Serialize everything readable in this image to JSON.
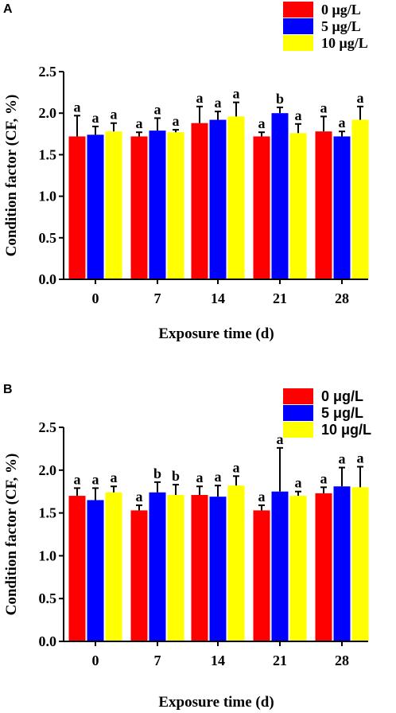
{
  "chart_data": [
    {
      "panel_label": "A",
      "type": "bar",
      "categories": [
        "0",
        "7",
        "14",
        "21",
        "28"
      ],
      "xlabel": "Exposure time (d)",
      "ylabel": "Condition factor (CF, %)",
      "ylim": [
        0,
        2.5
      ],
      "yticks": [
        "0.0",
        "0.5",
        "1.0",
        "1.5",
        "2.0",
        "2.5"
      ],
      "legend_position": "top-right",
      "series": [
        {
          "name": "0 μg/L",
          "color": "#ff0000",
          "values": [
            1.72,
            1.72,
            1.88,
            1.72,
            1.78
          ],
          "errors": [
            0.25,
            0.05,
            0.2,
            0.05,
            0.18
          ],
          "labels": [
            "a",
            "a",
            "a",
            "a",
            "a"
          ]
        },
        {
          "name": "5 μg/L",
          "color": "#0000ff",
          "values": [
            1.74,
            1.79,
            1.92,
            2.0,
            1.72
          ],
          "errors": [
            0.1,
            0.15,
            0.1,
            0.07,
            0.06
          ],
          "labels": [
            "a",
            "a",
            "a",
            "b",
            "a"
          ]
        },
        {
          "name": "10 μg/L",
          "color": "#ffff00",
          "values": [
            1.78,
            1.77,
            1.96,
            1.76,
            1.92
          ],
          "errors": [
            0.1,
            0.03,
            0.17,
            0.11,
            0.16
          ],
          "labels": [
            "a",
            "a",
            "a",
            "a",
            "a"
          ]
        }
      ]
    },
    {
      "panel_label": "B",
      "type": "bar",
      "categories": [
        "0",
        "7",
        "14",
        "21",
        "28"
      ],
      "xlabel": "Exposure time (d)",
      "ylabel": "Condition factor (CF, %)",
      "ylim": [
        0,
        2.5
      ],
      "yticks": [
        "0.0",
        "0.5",
        "1.0",
        "1.5",
        "2.0",
        "2.5"
      ],
      "legend_position": "top-right",
      "series": [
        {
          "name": "0 μg/L",
          "color": "#ff0000",
          "values": [
            1.7,
            1.53,
            1.71,
            1.53,
            1.73
          ],
          "errors": [
            0.09,
            0.06,
            0.1,
            0.06,
            0.07
          ],
          "labels": [
            "a",
            "a",
            "a",
            "a",
            "a"
          ]
        },
        {
          "name": "5 μg/L",
          "color": "#0000ff",
          "values": [
            1.65,
            1.74,
            1.69,
            1.75,
            1.81
          ],
          "errors": [
            0.14,
            0.12,
            0.13,
            0.51,
            0.22
          ],
          "labels": [
            "a",
            "b",
            "a",
            "a",
            "a"
          ]
        },
        {
          "name": "10 μg/L",
          "color": "#ffff00",
          "values": [
            1.74,
            1.71,
            1.82,
            1.7,
            1.8
          ],
          "errors": [
            0.07,
            0.12,
            0.11,
            0.05,
            0.24
          ],
          "labels": [
            "a",
            "b",
            "a",
            "a",
            "a"
          ]
        }
      ]
    }
  ]
}
